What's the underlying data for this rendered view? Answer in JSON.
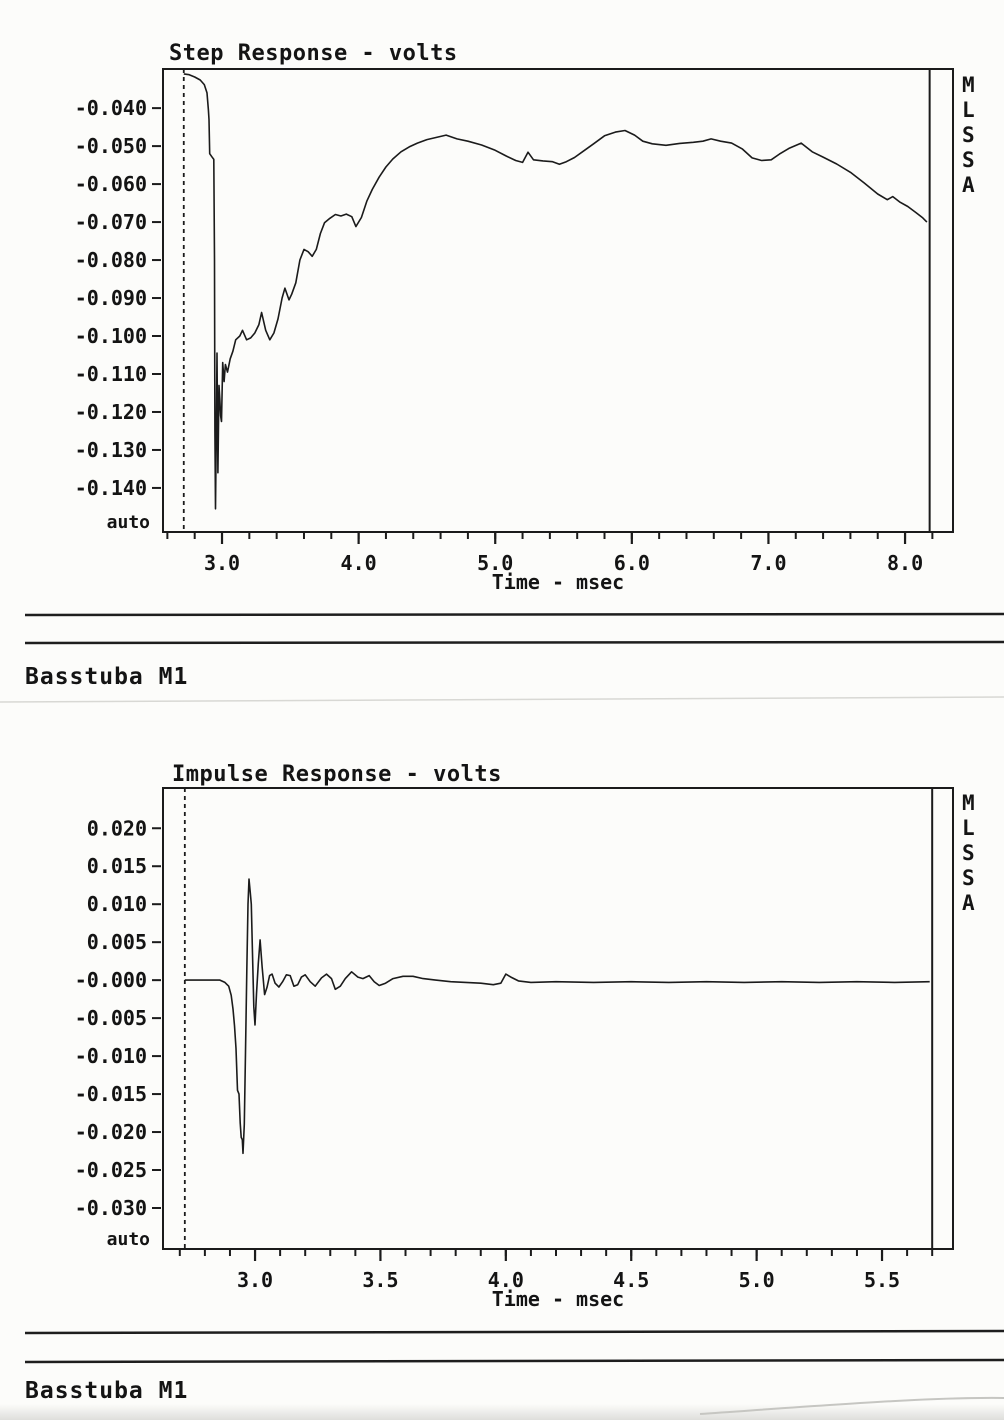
{
  "page": {
    "footer_label_1": "Basstuba M1",
    "footer_label_2": "Basstuba M1"
  },
  "chart_data": [
    {
      "type": "line",
      "title": "Step Response - volts",
      "xlabel": "Time - msec",
      "side_label": "MLSSA",
      "auto_label": "auto",
      "xlim": [
        2.568,
        8.351
      ],
      "ylim": [
        -0.1516,
        -0.0297
      ],
      "x_major_ticks": [
        3.0,
        4.0,
        5.0,
        6.0,
        7.0,
        8.0
      ],
      "x_major_labels": [
        "3.0",
        "4.0",
        "5.0",
        "6.0",
        "7.0",
        "8.0"
      ],
      "x_minor_step": 0.2,
      "y_ticks": [
        -0.04,
        -0.05,
        -0.06,
        -0.07,
        -0.08,
        -0.09,
        -0.1,
        -0.11,
        -0.12,
        -0.13,
        -0.14
      ],
      "y_tick_labels": [
        "-0.040",
        "-0.050",
        "-0.060",
        "-0.070",
        "-0.080",
        "-0.090",
        "-0.100",
        "-0.110",
        "-0.120",
        "-0.130",
        "-0.140"
      ],
      "marker_x": 2.72,
      "cursor_x": 8.18,
      "line_color": "#1b1b1b",
      "series": [
        [
          2.72,
          -0.031
        ],
        [
          2.76,
          -0.0312
        ],
        [
          2.8,
          -0.0318
        ],
        [
          2.84,
          -0.0326
        ],
        [
          2.87,
          -0.0338
        ],
        [
          2.89,
          -0.036
        ],
        [
          2.9,
          -0.0405
        ],
        [
          2.905,
          -0.043
        ],
        [
          2.91,
          -0.052
        ],
        [
          2.925,
          -0.0528
        ],
        [
          2.94,
          -0.0535
        ],
        [
          2.945,
          -0.08
        ],
        [
          2.948,
          -0.125
        ],
        [
          2.952,
          -0.1455
        ],
        [
          2.958,
          -0.125
        ],
        [
          2.963,
          -0.1045
        ],
        [
          2.97,
          -0.136
        ],
        [
          2.978,
          -0.113
        ],
        [
          2.984,
          -0.1165
        ],
        [
          2.99,
          -0.121
        ],
        [
          2.996,
          -0.1225
        ],
        [
          3.005,
          -0.107
        ],
        [
          3.015,
          -0.112
        ],
        [
          3.025,
          -0.1075
        ],
        [
          3.04,
          -0.1095
        ],
        [
          3.06,
          -0.106
        ],
        [
          3.08,
          -0.104
        ],
        [
          3.1,
          -0.101
        ],
        [
          3.13,
          -0.1
        ],
        [
          3.15,
          -0.0985
        ],
        [
          3.18,
          -0.101
        ],
        [
          3.21,
          -0.1005
        ],
        [
          3.24,
          -0.0992
        ],
        [
          3.27,
          -0.097
        ],
        [
          3.29,
          -0.0938
        ],
        [
          3.32,
          -0.0985
        ],
        [
          3.35,
          -0.101
        ],
        [
          3.38,
          -0.0992
        ],
        [
          3.41,
          -0.0955
        ],
        [
          3.44,
          -0.09
        ],
        [
          3.46,
          -0.0874
        ],
        [
          3.49,
          -0.0905
        ],
        [
          3.51,
          -0.089
        ],
        [
          3.54,
          -0.086
        ],
        [
          3.57,
          -0.08
        ],
        [
          3.6,
          -0.0772
        ],
        [
          3.63,
          -0.0778
        ],
        [
          3.66,
          -0.079
        ],
        [
          3.69,
          -0.0772
        ],
        [
          3.72,
          -0.073
        ],
        [
          3.75,
          -0.0702
        ],
        [
          3.79,
          -0.069
        ],
        [
          3.83,
          -0.068
        ],
        [
          3.87,
          -0.0684
        ],
        [
          3.91,
          -0.0679
        ],
        [
          3.95,
          -0.0686
        ],
        [
          3.98,
          -0.0712
        ],
        [
          4.02,
          -0.0688
        ],
        [
          4.06,
          -0.0645
        ],
        [
          4.1,
          -0.0614
        ],
        [
          4.15,
          -0.0582
        ],
        [
          4.2,
          -0.0555
        ],
        [
          4.25,
          -0.0534
        ],
        [
          4.31,
          -0.0515
        ],
        [
          4.37,
          -0.0502
        ],
        [
          4.43,
          -0.0492
        ],
        [
          4.5,
          -0.0483
        ],
        [
          4.57,
          -0.0477
        ],
        [
          4.64,
          -0.0471
        ],
        [
          4.72,
          -0.0481
        ],
        [
          4.8,
          -0.0487
        ],
        [
          4.9,
          -0.0497
        ],
        [
          5.0,
          -0.0511
        ],
        [
          5.08,
          -0.0526
        ],
        [
          5.15,
          -0.0538
        ],
        [
          5.2,
          -0.0543
        ],
        [
          5.24,
          -0.0516
        ],
        [
          5.28,
          -0.0536
        ],
        [
          5.35,
          -0.0539
        ],
        [
          5.42,
          -0.0541
        ],
        [
          5.47,
          -0.0548
        ],
        [
          5.52,
          -0.0541
        ],
        [
          5.58,
          -0.053
        ],
        [
          5.65,
          -0.0512
        ],
        [
          5.72,
          -0.0494
        ],
        [
          5.8,
          -0.0473
        ],
        [
          5.88,
          -0.0463
        ],
        [
          5.95,
          -0.0459
        ],
        [
          6.02,
          -0.0471
        ],
        [
          6.08,
          -0.0487
        ],
        [
          6.15,
          -0.0494
        ],
        [
          6.25,
          -0.0498
        ],
        [
          6.35,
          -0.0493
        ],
        [
          6.45,
          -0.049
        ],
        [
          6.52,
          -0.0487
        ],
        [
          6.58,
          -0.0481
        ],
        [
          6.65,
          -0.0487
        ],
        [
          6.73,
          -0.0492
        ],
        [
          6.81,
          -0.0508
        ],
        [
          6.88,
          -0.0531
        ],
        [
          6.95,
          -0.0538
        ],
        [
          7.02,
          -0.0536
        ],
        [
          7.08,
          -0.0521
        ],
        [
          7.15,
          -0.0506
        ],
        [
          7.24,
          -0.0492
        ],
        [
          7.32,
          -0.0515
        ],
        [
          7.4,
          -0.0529
        ],
        [
          7.5,
          -0.0547
        ],
        [
          7.6,
          -0.0569
        ],
        [
          7.7,
          -0.0597
        ],
        [
          7.8,
          -0.0626
        ],
        [
          7.87,
          -0.0641
        ],
        [
          7.91,
          -0.0633
        ],
        [
          7.96,
          -0.0647
        ],
        [
          8.02,
          -0.0659
        ],
        [
          8.08,
          -0.0675
        ],
        [
          8.13,
          -0.0689
        ],
        [
          8.16,
          -0.07
        ]
      ]
    },
    {
      "type": "line",
      "title": "Impulse Response - volts",
      "xlabel": "Time - msec",
      "side_label": "MLSSA",
      "auto_label": "auto",
      "xlim": [
        2.633,
        5.783
      ],
      "ylim": [
        -0.0354,
        0.0253
      ],
      "x_major_ticks": [
        3.0,
        3.5,
        4.0,
        4.5,
        5.0,
        5.5
      ],
      "x_major_labels": [
        "3.0",
        "3.5",
        "4.0",
        "4.5",
        "5.0",
        "5.5"
      ],
      "x_minor_step": 0.1,
      "y_ticks": [
        0.02,
        0.015,
        0.01,
        0.005,
        0.0,
        -0.005,
        -0.01,
        -0.015,
        -0.02,
        -0.025,
        -0.03
      ],
      "y_tick_labels": [
        "0.020",
        "0.015",
        "0.010",
        "0.005",
        "-0.000",
        "-0.005",
        "-0.010",
        "-0.015",
        "-0.020",
        "-0.025",
        "-0.030"
      ],
      "marker_x": 2.72,
      "cursor_x": 5.7,
      "line_color": "#1b1b1b",
      "series": [
        [
          2.72,
          0.0
        ],
        [
          2.8,
          0.0
        ],
        [
          2.86,
          0.0
        ],
        [
          2.88,
          -0.0003
        ],
        [
          2.895,
          -0.0008
        ],
        [
          2.905,
          -0.002
        ],
        [
          2.912,
          -0.0038
        ],
        [
          2.918,
          -0.006
        ],
        [
          2.924,
          -0.009
        ],
        [
          2.93,
          -0.0145
        ],
        [
          2.936,
          -0.015
        ],
        [
          2.941,
          -0.0188
        ],
        [
          2.945,
          -0.0207
        ],
        [
          2.949,
          -0.021
        ],
        [
          2.952,
          -0.0228
        ],
        [
          2.957,
          -0.019
        ],
        [
          2.962,
          -0.0095
        ],
        [
          2.967,
          0.0012
        ],
        [
          2.972,
          0.01
        ],
        [
          2.976,
          0.0133
        ],
        [
          2.981,
          0.0115
        ],
        [
          2.985,
          0.01
        ],
        [
          2.99,
          0.0035
        ],
        [
          2.995,
          -0.0035
        ],
        [
          3.0,
          -0.0059
        ],
        [
          3.006,
          -0.0018
        ],
        [
          3.013,
          0.0022
        ],
        [
          3.02,
          0.0053
        ],
        [
          3.028,
          0.0018
        ],
        [
          3.038,
          -0.0019
        ],
        [
          3.048,
          -0.0009
        ],
        [
          3.058,
          0.0006
        ],
        [
          3.068,
          0.0008
        ],
        [
          3.08,
          -0.0004
        ],
        [
          3.095,
          -0.0009
        ],
        [
          3.11,
          -0.0002
        ],
        [
          3.125,
          0.0007
        ],
        [
          3.14,
          0.0006
        ],
        [
          3.155,
          -0.0008
        ],
        [
          3.17,
          -0.0006
        ],
        [
          3.185,
          0.0004
        ],
        [
          3.2,
          0.0007
        ],
        [
          3.22,
          -0.0002
        ],
        [
          3.24,
          -0.0008
        ],
        [
          3.265,
          0.0003
        ],
        [
          3.285,
          0.0008
        ],
        [
          3.305,
          0.0002
        ],
        [
          3.32,
          -0.0012
        ],
        [
          3.34,
          -0.0008
        ],
        [
          3.36,
          0.0002
        ],
        [
          3.385,
          0.0011
        ],
        [
          3.41,
          0.0004
        ],
        [
          3.43,
          0.0002
        ],
        [
          3.455,
          0.0006
        ],
        [
          3.475,
          -0.0002
        ],
        [
          3.495,
          -0.0007
        ],
        [
          3.52,
          -0.0004
        ],
        [
          3.55,
          0.0002
        ],
        [
          3.59,
          0.0005
        ],
        [
          3.63,
          0.0005
        ],
        [
          3.67,
          0.0002
        ],
        [
          3.72,
          0.0
        ],
        [
          3.78,
          -0.0002
        ],
        [
          3.84,
          -0.0003
        ],
        [
          3.9,
          -0.0004
        ],
        [
          3.95,
          -0.0006
        ],
        [
          3.98,
          -0.0004
        ],
        [
          4.0,
          0.0008
        ],
        [
          4.02,
          0.0004
        ],
        [
          4.05,
          -0.0001
        ],
        [
          4.1,
          -0.0003
        ],
        [
          4.2,
          -0.0002
        ],
        [
          4.35,
          -0.0003
        ],
        [
          4.5,
          -0.0002
        ],
        [
          4.65,
          -0.0003
        ],
        [
          4.8,
          -0.0002
        ],
        [
          4.95,
          -0.0003
        ],
        [
          5.1,
          -0.0002
        ],
        [
          5.25,
          -0.0003
        ],
        [
          5.4,
          -0.0002
        ],
        [
          5.55,
          -0.0003
        ],
        [
          5.69,
          -0.0002
        ]
      ]
    }
  ]
}
